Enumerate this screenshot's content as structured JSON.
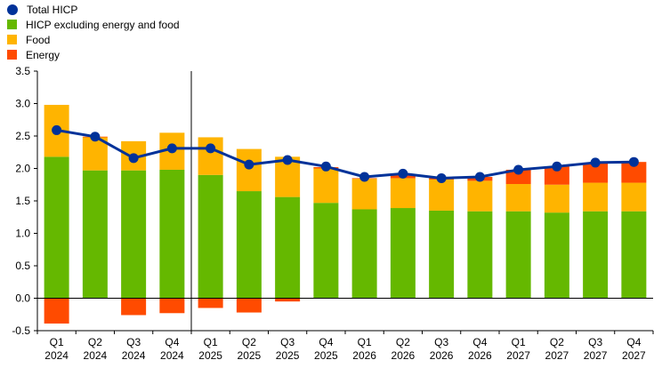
{
  "chart_data": {
    "type": "bar",
    "stacked": true,
    "categories": [
      [
        "Q1",
        "2024"
      ],
      [
        "Q2",
        "2024"
      ],
      [
        "Q3",
        "2024"
      ],
      [
        "Q4",
        "2024"
      ],
      [
        "Q1",
        "2025"
      ],
      [
        "Q2",
        "2025"
      ],
      [
        "Q3",
        "2025"
      ],
      [
        "Q4",
        "2025"
      ],
      [
        "Q1",
        "2026"
      ],
      [
        "Q2",
        "2026"
      ],
      [
        "Q3",
        "2026"
      ],
      [
        "Q4",
        "2026"
      ],
      [
        "Q1",
        "2027"
      ],
      [
        "Q2",
        "2027"
      ],
      [
        "Q3",
        "2027"
      ],
      [
        "Q4",
        "2027"
      ]
    ],
    "series": [
      {
        "name": "HICP excluding energy and food",
        "kind": "bar",
        "color": "#65b800",
        "values": [
          2.18,
          1.97,
          1.97,
          1.98,
          1.9,
          1.65,
          1.56,
          1.47,
          1.37,
          1.39,
          1.35,
          1.34,
          1.34,
          1.32,
          1.34,
          1.34
        ]
      },
      {
        "name": "Food",
        "kind": "bar",
        "color": "#ffb400",
        "values": [
          0.8,
          0.51,
          0.45,
          0.57,
          0.58,
          0.65,
          0.62,
          0.53,
          0.47,
          0.46,
          0.48,
          0.47,
          0.42,
          0.43,
          0.44,
          0.44
        ]
      },
      {
        "name": "Energy",
        "kind": "bar",
        "color": "#ff4b00",
        "values": [
          -0.39,
          0.01,
          -0.26,
          -0.23,
          -0.15,
          -0.22,
          -0.05,
          0.02,
          0.01,
          0.06,
          0.02,
          0.06,
          0.22,
          0.28,
          0.3,
          0.32
        ]
      },
      {
        "name": "Total HICP",
        "kind": "line",
        "color": "#003299",
        "values": [
          2.59,
          2.49,
          2.16,
          2.31,
          2.31,
          2.06,
          2.13,
          2.03,
          1.87,
          1.92,
          1.85,
          1.87,
          1.98,
          2.03,
          2.09,
          2.1
        ]
      }
    ],
    "legend_order": [
      "Total HICP",
      "HICP excluding energy and food",
      "Food",
      "Energy"
    ],
    "legend_position": "top-left",
    "y_ticks": [
      "3.5",
      "3.0",
      "2.5",
      "2.0",
      "1.5",
      "1.0",
      "0.5",
      "0.0",
      "-0.5"
    ],
    "ylim": [
      -0.5,
      3.5
    ],
    "divider_after_category": 3,
    "grid": false
  }
}
